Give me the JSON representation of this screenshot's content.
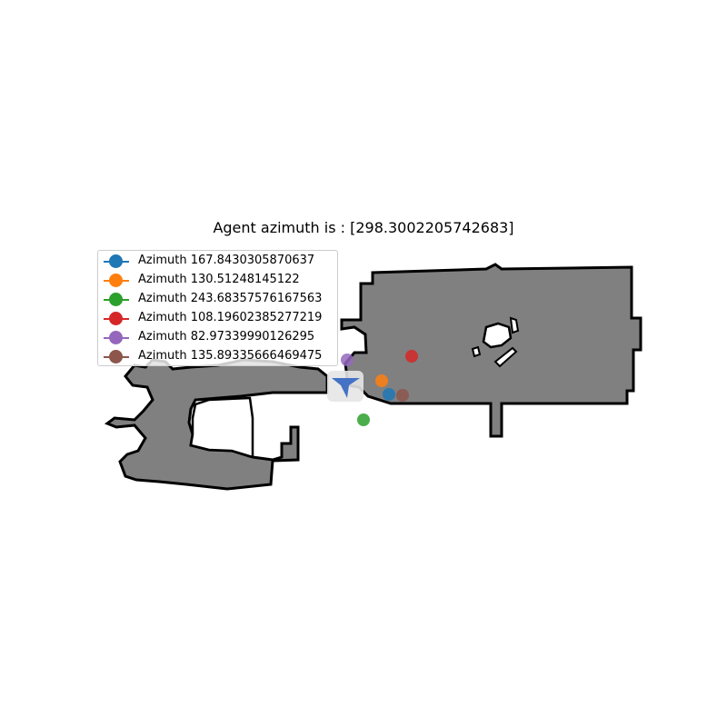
{
  "title": "Agent azimuth is : [298.3002205742683]",
  "agent": {
    "azimuth": 298.3002205742683,
    "color": "#4472c4",
    "icon": "agent-arrow-icon"
  },
  "colors": {
    "map_fill": "#808080",
    "map_border": "#000000",
    "background": "#ffffff"
  },
  "legend": {
    "placement": "upper-left",
    "items": [
      {
        "label": "Azimuth 167.8430305870637",
        "color": "#1f77b4"
      },
      {
        "label": "Azimuth 130.51248145122",
        "color": "#ff7f0e"
      },
      {
        "label": "Azimuth 243.68357576167563",
        "color": "#2ca02c"
      },
      {
        "label": "Azimuth 108.19602385277219",
        "color": "#d62728"
      },
      {
        "label": "Azimuth 82.97339990126295",
        "color": "#9467bd"
      },
      {
        "label": "Azimuth 135.89335666469475",
        "color": "#8c564b"
      }
    ]
  }
}
